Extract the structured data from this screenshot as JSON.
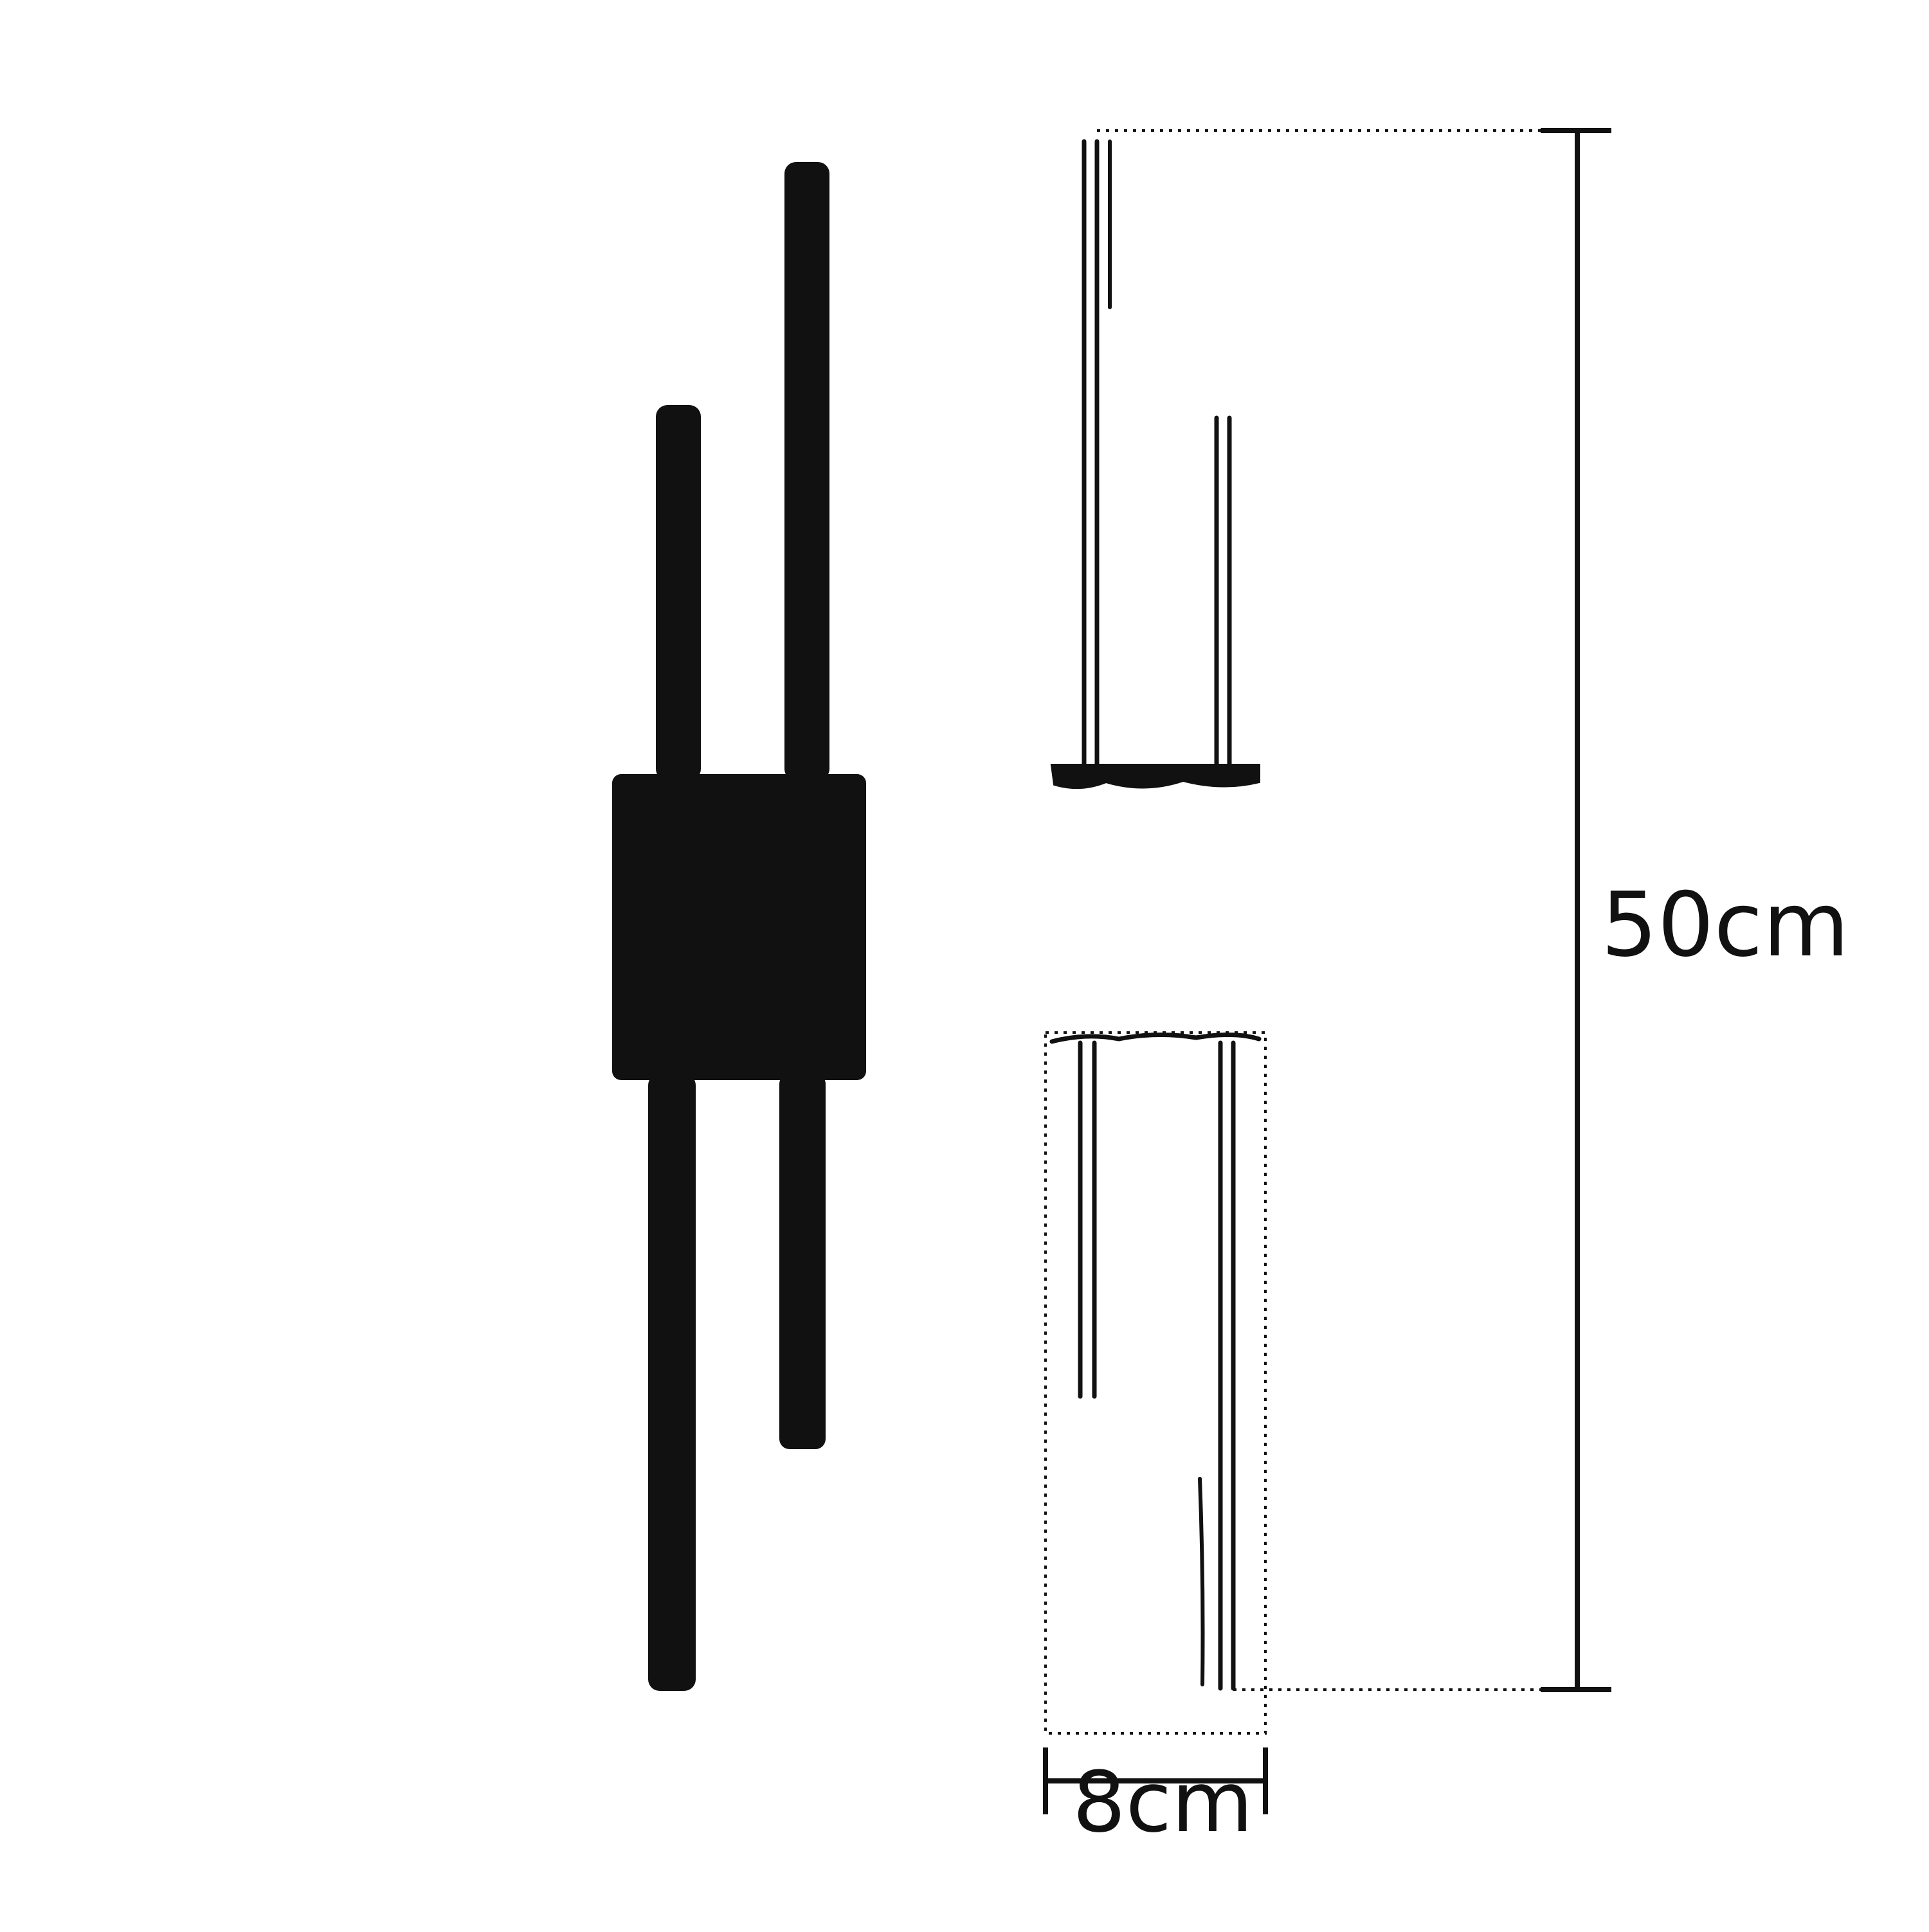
{
  "dimensions": {
    "height_label": "50cm",
    "width_label": "8cm"
  },
  "colors": {
    "ink": "#111111",
    "background": "#ffffff"
  }
}
